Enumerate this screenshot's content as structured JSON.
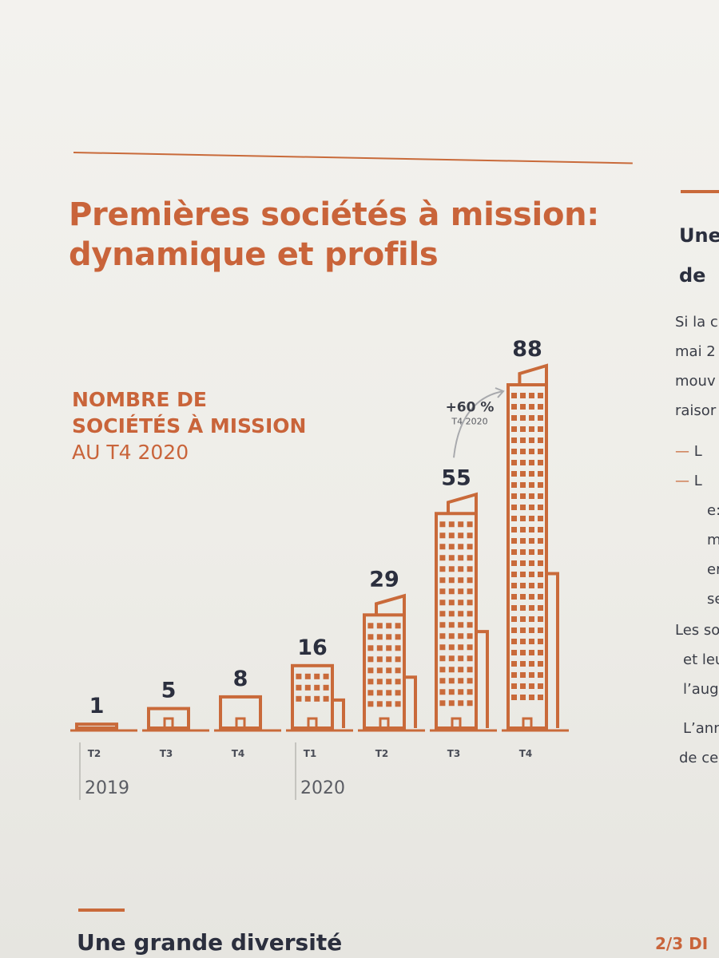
{
  "heading": {
    "title_line1": "Premières sociétés à mission:",
    "title_line2": "dynamique et profils"
  },
  "chart_data": {
    "type": "bar",
    "subtitle_line1": "NOMBRE DE",
    "subtitle_line2": "SOCIÉTÉS À MISSION",
    "subtitle_line3": "AU T4 2020",
    "categories": [
      "T2",
      "T3",
      "T4",
      "T1",
      "T2",
      "T3",
      "T4"
    ],
    "values": [
      1,
      5,
      8,
      16,
      29,
      55,
      88
    ],
    "years": [
      {
        "label": "2019",
        "from": 0,
        "to": 2
      },
      {
        "label": "2020",
        "from": 3,
        "to": 6
      }
    ],
    "annotation": {
      "value": "+60 %",
      "label": "T4 2020",
      "from_index": 5,
      "to_index": 6
    },
    "color": "#c96a3a",
    "label_color": "#2b2f3e"
  },
  "right_column": {
    "heading_line1": "Une",
    "heading_line2": "de",
    "lines": [
      "Si la c",
      "mai 2",
      "mouv",
      "raisor"
    ],
    "bullets": [
      "L",
      "L"
    ],
    "bullet_cont": [
      "e:",
      "m",
      "er",
      "se"
    ],
    "lines2": [
      "Les so",
      "et leur",
      "l’augm"
    ],
    "lines3": [
      "L’anné",
      "de ce r"
    ]
  },
  "bottom": {
    "heading": "Une grande diversité",
    "page_number": "2/3 DI"
  }
}
